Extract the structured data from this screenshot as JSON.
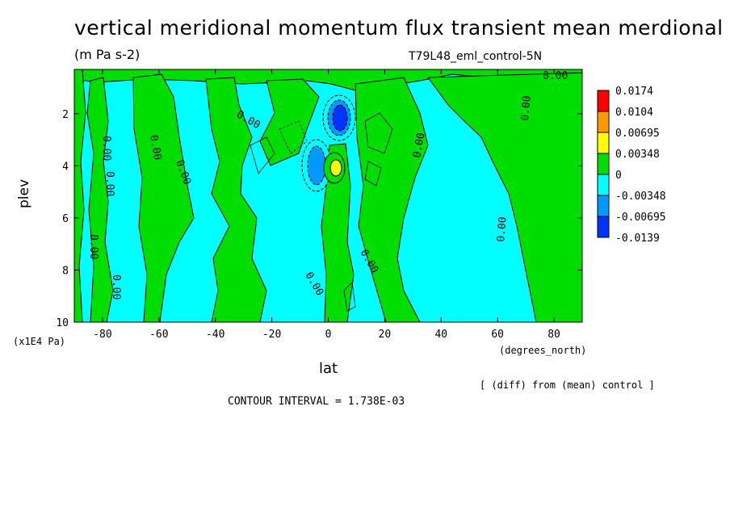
{
  "chart_data": {
    "type": "contour",
    "title": "vertical meridional momentum flux transient mean merdional",
    "units": "(m Pa s-2)",
    "run_label": "T79L48_eml_control-5N",
    "xlabel": "lat",
    "xunits": "(degrees_north)",
    "ylabel": "plev",
    "yunits": "(x1E4 Pa)",
    "xlim": [
      -90,
      90
    ],
    "ylim": [
      10,
      0.3
    ],
    "x_ticks": [
      "-80",
      "-60",
      "-40",
      "-20",
      "0",
      "20",
      "40",
      "60",
      "80"
    ],
    "x_tick_values": [
      -80,
      -60,
      -40,
      -20,
      0,
      20,
      40,
      60,
      80
    ],
    "y_ticks": [
      "2",
      "4",
      "6",
      "8",
      "10"
    ],
    "y_tick_values": [
      2,
      4,
      6,
      8,
      10
    ],
    "contour_interval_text": "CONTOUR INTERVAL = 1.738E-03",
    "note": "[ (diff) from (mean) control ]",
    "contour_labels": [
      "0.00"
    ],
    "colorbar": {
      "labels": [
        "0.0174",
        "0.0104",
        "0.00695",
        "0.00348",
        "0",
        "-0.00348",
        "-0.00695",
        "-0.0139"
      ],
      "colors": [
        "#ff0000",
        "#ff9900",
        "#ffff00",
        "#00dd00",
        "#00ffff",
        "#0099ff",
        "#0033ff"
      ]
    },
    "colors": {
      "positive_small": "#00dd00",
      "negative_small": "#00ffff"
    },
    "features": [
      {
        "name": "negative-core-upper",
        "lat": 4,
        "plev": 2.0,
        "value": -0.0139
      },
      {
        "name": "negative-core-lower",
        "lat": -4,
        "plev": 3.8,
        "value": -0.00695
      },
      {
        "name": "positive-core",
        "lat": 4,
        "plev": 4.0,
        "value": 0.00695
      }
    ]
  }
}
